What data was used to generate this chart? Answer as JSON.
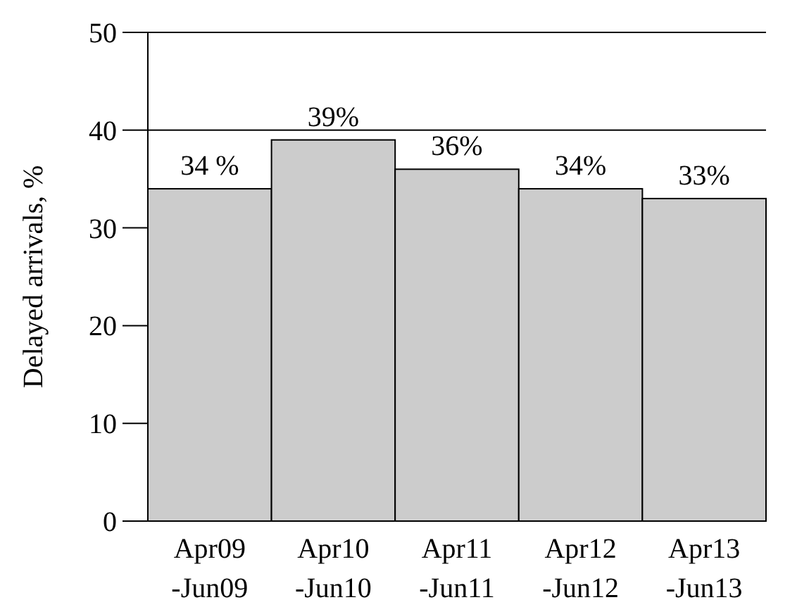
{
  "chart_data": {
    "type": "bar",
    "ylabel": "Delayed arrivals, %",
    "categories": [
      "Apr09\n-Jun09",
      "Apr10\n-Jun10",
      "Apr11\n-Jun11",
      "Apr12\n-Jun12",
      "Apr13\n-Jun13"
    ],
    "values": [
      34,
      39,
      36,
      34,
      33
    ],
    "value_labels": [
      "34 %",
      "39%",
      "36%",
      "34%",
      "33%"
    ],
    "color": "#cccccc",
    "ylim": [
      0,
      50
    ],
    "yticks": [
      0,
      10,
      20,
      30,
      40,
      50
    ],
    "grid": "y"
  }
}
